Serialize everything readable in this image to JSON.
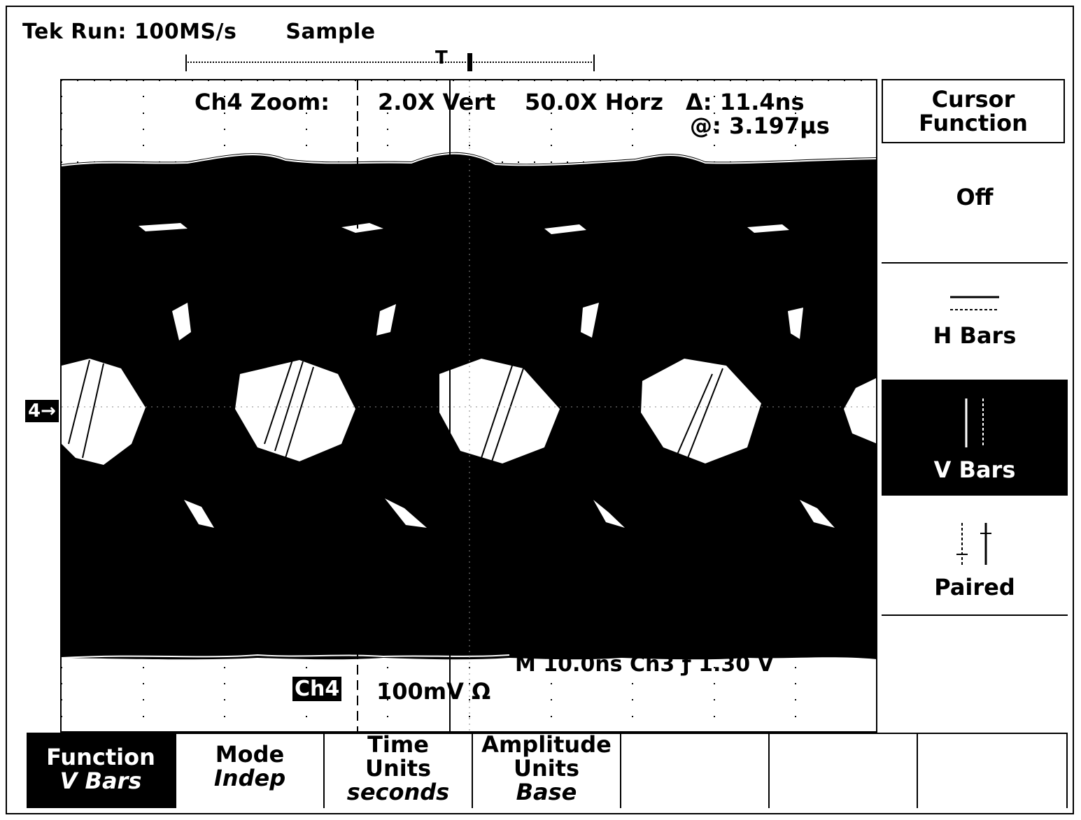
{
  "status": {
    "run": "Tek Run: 100MS/s",
    "mode": "Sample"
  },
  "trigger": {
    "marker": "T"
  },
  "readout": {
    "zoom_label": "Ch4 Zoom:",
    "vert": "2.0X Vert",
    "horz": "50.0X Horz",
    "delta": "Δ: 11.4ns",
    "at": "@: 3.197µs",
    "timebase": "M 10.0ns  Ch3 ƒ  1.30 V",
    "ch_tag": "Ch4",
    "ch_scale": "100mV Ω",
    "ch_marker": "4→"
  },
  "side_menu": {
    "title_line1": "Cursor",
    "title_line2": "Function",
    "items": [
      {
        "label": "Off",
        "selected": false
      },
      {
        "label": "H Bars",
        "icon": "h-bars-icon",
        "selected": false
      },
      {
        "label": "V Bars",
        "icon": "v-bars-icon",
        "selected": true
      },
      {
        "label": "Paired",
        "icon": "paired-cursor-icon",
        "selected": false
      }
    ]
  },
  "bottom_menu": [
    {
      "line1": "Function",
      "value": "V Bars",
      "selected": true
    },
    {
      "line1": "Mode",
      "value": "Indep",
      "selected": false
    },
    {
      "line1": "Time",
      "line2": "Units",
      "value": "seconds",
      "selected": false
    },
    {
      "line1": "Amplitude",
      "line2": "Units",
      "value": "Base",
      "selected": false
    },
    {
      "line1": "",
      "value": "",
      "selected": false
    },
    {
      "line1": "",
      "value": "",
      "selected": false
    },
    {
      "line1": "",
      "value": "",
      "selected": false
    }
  ]
}
